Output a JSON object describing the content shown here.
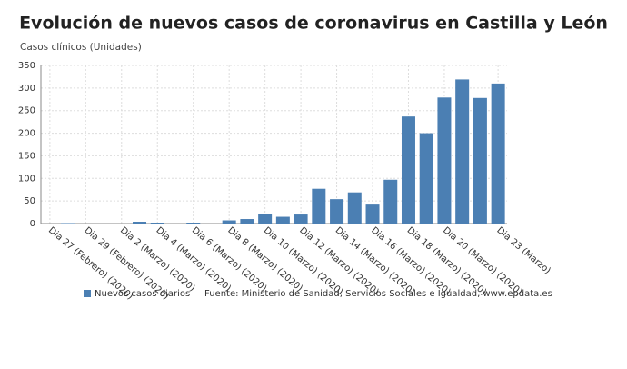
{
  "chart_data": {
    "type": "bar",
    "title": "Evolución de nuevos casos de coronavirus en Castilla y León",
    "y_axis_label": "Casos clínicos (Unidades)",
    "categories": [
      "Dia 27 (Febrero) (2020)",
      null,
      "Dia 29 (Febrero) (2020)",
      null,
      "Dia 2 (Marzo) (2020)",
      null,
      "Dia 4 (Marzo) (2020)",
      null,
      "Dia 6 (Marzo) (2020)",
      null,
      "Dia 8 (Marzo) (2020)",
      null,
      "Dia 10 (Marzo) (2020)",
      null,
      "Dia 12 (Marzo) (2020)",
      null,
      "Dia 14 (Marzo) (2020)",
      null,
      "Dia 16 (Marzo) (2020)",
      null,
      "Dia 18 (Marzo) (2020)",
      null,
      "Dia 20 (Marzo) (2020)",
      null,
      null,
      "Dia 23 (Marzo)"
    ],
    "series": [
      {
        "name": "Nuevos casos diarios",
        "color": "#4b7fb3",
        "values": [
          0,
          1,
          0,
          0,
          0,
          4,
          2,
          0,
          2,
          0,
          7,
          10,
          22,
          15,
          20,
          77,
          54,
          69,
          42,
          97,
          237,
          200,
          279,
          319,
          278,
          310
        ]
      }
    ],
    "ylim": [
      0,
      350
    ],
    "yticks": [
      0,
      50,
      100,
      150,
      200,
      250,
      300,
      350
    ],
    "grid": true,
    "source": "Fuente: Ministerio de Sanidad, Servicios Sociales e Igualdad, www.epdata.es"
  }
}
